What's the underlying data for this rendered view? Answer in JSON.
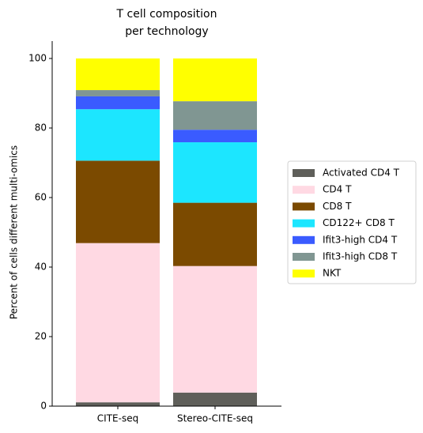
{
  "chart_data": {
    "type": "stacked-bar",
    "title": [
      "T cell composition",
      "per technology"
    ],
    "y_label": "Percent of cells different multi-omics",
    "categories": [
      "CITE-seq",
      "Stereo-CITE-seq"
    ],
    "series": [
      {
        "name": "Activated CD4 T",
        "color": "#5f5f5a",
        "values": [
          1.1,
          3.9
        ]
      },
      {
        "name": "CD4 T",
        "color": "#ffd9e3",
        "values": [
          45.8,
          36.4
        ]
      },
      {
        "name": "CD8 T",
        "color": "#7b4a00",
        "values": [
          23.7,
          18.2
        ]
      },
      {
        "name": "CD122+ CD8 T",
        "color": "#1ce6ff",
        "values": [
          14.8,
          17.4
        ]
      },
      {
        "name": "Ifit3-high CD4 T",
        "color": "#3a5bff",
        "values": [
          3.7,
          3.6
        ]
      },
      {
        "name": "Ifit3-high CD8 T",
        "color": "#809692",
        "values": [
          1.8,
          8.2
        ]
      },
      {
        "name": "NKT",
        "color": "#ffff00",
        "values": [
          9.1,
          12.3
        ]
      }
    ],
    "ylim": [
      0,
      105
    ],
    "yticks": [
      0,
      20,
      40,
      60,
      80,
      100
    ],
    "grid": false,
    "legend": "right"
  }
}
